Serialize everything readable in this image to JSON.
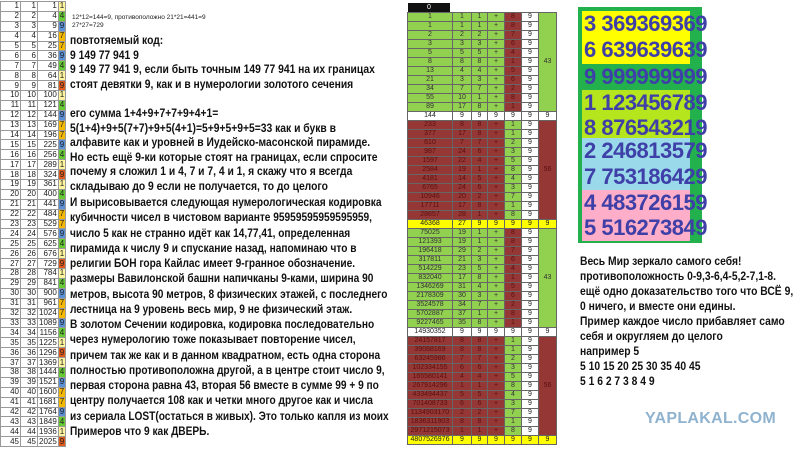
{
  "colors": {
    "root_1": "#fff59d",
    "root_4": "#66cc33",
    "root_7": "#f5b800",
    "root_9_mod3": "#5b8fd6",
    "root_9_mod9": "#e05a1a",
    "green": "#92d050",
    "dark_red": "#953735",
    "yellow": "#ffff00",
    "panel_green": "#22b14c",
    "number_blue": "#3f3fa8"
  },
  "squares_table": [
    [
      1,
      1,
      1,
      1
    ],
    [
      2,
      2,
      4,
      4
    ],
    [
      3,
      3,
      9,
      9
    ],
    [
      4,
      4,
      16,
      7
    ],
    [
      5,
      5,
      25,
      7
    ],
    [
      6,
      6,
      36,
      9
    ],
    [
      7,
      7,
      49,
      4
    ],
    [
      8,
      8,
      64,
      1
    ],
    [
      9,
      9,
      81,
      9
    ],
    [
      10,
      10,
      100,
      1
    ],
    [
      11,
      11,
      121,
      4
    ],
    [
      12,
      12,
      144,
      9
    ],
    [
      13,
      13,
      169,
      7
    ],
    [
      14,
      14,
      196,
      7
    ],
    [
      15,
      15,
      225,
      9
    ],
    [
      16,
      16,
      256,
      4
    ],
    [
      17,
      17,
      289,
      1
    ],
    [
      18,
      18,
      324,
      9
    ],
    [
      19,
      19,
      361,
      1
    ],
    [
      20,
      20,
      400,
      4
    ],
    [
      21,
      21,
      441,
      9
    ],
    [
      22,
      22,
      484,
      7
    ],
    [
      23,
      23,
      529,
      7
    ],
    [
      24,
      24,
      576,
      9
    ],
    [
      25,
      25,
      625,
      4
    ],
    [
      26,
      26,
      676,
      1
    ],
    [
      27,
      27,
      729,
      9
    ],
    [
      28,
      28,
      784,
      1
    ],
    [
      29,
      29,
      841,
      4
    ],
    [
      30,
      30,
      900,
      9
    ],
    [
      31,
      31,
      961,
      7
    ],
    [
      32,
      32,
      1024,
      7
    ],
    [
      33,
      33,
      1089,
      9
    ],
    [
      34,
      34,
      1156,
      4
    ],
    [
      35,
      35,
      1225,
      1
    ],
    [
      36,
      36,
      1296,
      9
    ],
    [
      37,
      37,
      1369,
      1
    ],
    [
      38,
      38,
      1444,
      4
    ],
    [
      39,
      39,
      1521,
      9
    ],
    [
      40,
      40,
      1600,
      7
    ],
    [
      41,
      41,
      1681,
      7
    ],
    [
      42,
      42,
      1764,
      9
    ],
    [
      43,
      43,
      1849,
      4
    ],
    [
      44,
      44,
      1936,
      1
    ],
    [
      45,
      45,
      2025,
      9
    ]
  ],
  "note": {
    "line1": "12*12=144=9, противоположно 21*21=441=9",
    "line2": "27*27=729"
  },
  "text_block1": [
    "повтотяемый код:",
    " 9 149 77 941 9",
    "9 149 77 941 9, если быть точным 149 77 941 на их границах",
    "стоят девятки 9, как и в нумерологии золотого сечения",
    "",
    "его сумма 1+4+9+7+7+9+4+1=",
    "5(1+4)+9+5(7+7)+9+5(4+1)=5+9+5+9+5=33 как и букв в",
    "алфавите как и уровней в Иудейско-масонской пирамиде.",
    "Но есть ещё 9-ки которые стоят на границах, если спросите",
    "почему я сложил 1 и 4, 7 и 7, 4 и 1, я скажу что я всегда",
    "складываю до 9 если не получается, то до целого"
  ],
  "text_block2": [
    "И вырисовывается следующая нумерологическая кодировка",
    "кубичности чисел в чистовом варианте 95959595959595959,",
    "число 5 как не странно идёт как 14,77,41, определенная",
    "пирамида к числу 9 и спускание назад, напоминаю что в",
    "религии БОН гора Кайлас имеет 9-гранное обозначение.",
    "размеры Вавилонской башни напичканы 9-ками, ширина 90",
    "метров, высота 90 метров, 8 физических этажей, с последнего",
    "лестница на 9 уровень весь мир, 9 не физический этаж.",
    "В золотом Сечении кодировка, кодировка последовательно",
    "через нумерологию тоже показывает повторение чисел,",
    "причем так же как и в данном квадратном, есть одна сторона",
    "полностью противоположна другой, а в центре стоит число 9,",
    "первая сторона равна 43, вторая 56 вместе в сумме 99 + 9 по",
    "центру получается 108 как и четки много другое как и числа",
    "из сериала LOST(остаться в живых). Это только капля из моих",
    "Примеров что 9 как ДВЕРЬ."
  ],
  "fib_table": {
    "header": "0",
    "sections": [
      {
        "theme": "green",
        "total": "43",
        "rows": [
          [
            "1",
            "1",
            "1",
            "+",
            "8",
            "9"
          ],
          [
            "1",
            "1",
            "1",
            "+",
            "8",
            "9"
          ],
          [
            "2",
            "2",
            "2",
            "+",
            "7",
            "9"
          ],
          [
            "3",
            "3",
            "3",
            "+",
            "6",
            "9"
          ],
          [
            "5",
            "5",
            "5",
            "+",
            "4",
            "9"
          ],
          [
            "8",
            "8",
            "8",
            "+",
            "1",
            "9"
          ],
          [
            "13",
            "4",
            "4",
            "+",
            "5",
            "9"
          ],
          [
            "21",
            "3",
            "3",
            "+",
            "6",
            "9"
          ],
          [
            "34",
            "7",
            "7",
            "+",
            "2",
            "9"
          ],
          [
            "55",
            "10",
            "1",
            "+",
            "8",
            "9"
          ],
          [
            "89",
            "17",
            "8",
            "+",
            "1",
            "9"
          ]
        ]
      },
      {
        "theme": "white",
        "sum": [
          "144",
          "9",
          "9",
          "9",
          "9",
          "9",
          "9"
        ]
      },
      {
        "theme": "red",
        "total": "56",
        "rows": [
          [
            "233",
            "8",
            "8",
            "+",
            "1",
            "9"
          ],
          [
            "377",
            "17",
            "8",
            "+",
            "1",
            "9"
          ],
          [
            "610",
            "7",
            "7",
            "+",
            "2",
            "9"
          ],
          [
            "987",
            "24",
            "6",
            "+",
            "3",
            "9"
          ],
          [
            "1597",
            "22",
            "4",
            "+",
            "5",
            "9"
          ],
          [
            "2584",
            "19",
            "1",
            "+",
            "8",
            "9"
          ],
          [
            "4181",
            "14",
            "5",
            "+",
            "4",
            "9"
          ],
          [
            "6765",
            "24",
            "6",
            "+",
            "3",
            "9"
          ],
          [
            "10946",
            "20",
            "2",
            "+",
            "7",
            "9"
          ],
          [
            "17711",
            "17",
            "8",
            "+",
            "1",
            "9"
          ],
          [
            "28657",
            "28",
            "1",
            "+",
            "8",
            "9"
          ]
        ]
      },
      {
        "theme": "yellow",
        "sum": [
          "46368",
          "27",
          "9",
          "9",
          "9",
          "9",
          "9"
        ]
      },
      {
        "theme": "green",
        "total": "43",
        "rows": [
          [
            "75025",
            "19",
            "1",
            "+",
            "8",
            "9"
          ],
          [
            "121393",
            "19",
            "1",
            "+",
            "8",
            "9"
          ],
          [
            "196418",
            "29",
            "2",
            "+",
            "7",
            "9"
          ],
          [
            "317811",
            "21",
            "3",
            "+",
            "6",
            "9"
          ],
          [
            "514229",
            "23",
            "5",
            "+",
            "4",
            "9"
          ],
          [
            "832040",
            "17",
            "8",
            "+",
            "1",
            "9"
          ],
          [
            "1346269",
            "31",
            "4",
            "+",
            "5",
            "9"
          ],
          [
            "2178309",
            "30",
            "3",
            "+",
            "6",
            "9"
          ],
          [
            "3524578",
            "34",
            "7",
            "+",
            "2",
            "9"
          ],
          [
            "5702887",
            "37",
            "1",
            "+",
            "8",
            "9"
          ],
          [
            "9227465",
            "35",
            "8",
            "+",
            "1",
            "9"
          ]
        ]
      },
      {
        "theme": "white",
        "sum": [
          "14930352",
          "9",
          "9",
          "9",
          "9",
          "9",
          "9"
        ]
      },
      {
        "theme": "red",
        "total": "56",
        "rows": [
          [
            "24157817",
            "8",
            "8",
            "+",
            "1",
            "9"
          ],
          [
            "39088169",
            "8",
            "8",
            "+",
            "1",
            "9"
          ],
          [
            "63245986",
            "7",
            "7",
            "+",
            "2",
            "9"
          ],
          [
            "102334155",
            "6",
            "6",
            "+",
            "3",
            "9"
          ],
          [
            "165580141",
            "4",
            "4",
            "+",
            "5",
            "9"
          ],
          [
            "267914296",
            "1",
            "1",
            "+",
            "8",
            "9"
          ],
          [
            "433494437",
            "5",
            "5",
            "+",
            "4",
            "9"
          ],
          [
            "701408733",
            "6",
            "6",
            "+",
            "3",
            "9"
          ],
          [
            "1134903170",
            "2",
            "2",
            "+",
            "7",
            "9"
          ],
          [
            "1836311903",
            "8",
            "8",
            "+",
            "1",
            "9"
          ],
          [
            "2971215073",
            "1",
            "1",
            "+",
            "8",
            "9"
          ]
        ]
      },
      {
        "theme": "yellow",
        "sum": [
          "4807526976",
          "9",
          "9",
          "9",
          "9",
          "9",
          "9"
        ]
      }
    ]
  },
  "number_panel": [
    {
      "text": "3 369369369",
      "bg": "#ffff00"
    },
    {
      "text": "6 639639639",
      "bg": "#ffff00"
    },
    {
      "text": "9 999999999",
      "bg": "#22b14c"
    },
    {
      "text": "1 123456789",
      "bg": "#b5e61d"
    },
    {
      "text": "8 876543219",
      "bg": "#b5e61d"
    },
    {
      "text": "2 246813579",
      "bg": "#99d9ea"
    },
    {
      "text": "7 753186429",
      "bg": "#99d9ea"
    },
    {
      "text": "4 483726159",
      "bg": "#ffaec9"
    },
    {
      "text": "5 516273849",
      "bg": "#ffaec9"
    }
  ],
  "right_text": [
    "Весь Мир зеркало самого себя!",
    "противоположность 0-9,3-6,4-5,2-7,1-8.",
    "ещё одно доказательство того что ВСЁ 9,",
    "0 ничего, и вместе они едины.",
    "Пример каждое число прибавляет само",
    "себя и округляем до целого",
    "например 5",
    "5 10 15 20 25 30 35 40 45",
    "5 1 6 2 7 3 8 4 9"
  ],
  "watermark": "YAPLAKAL.COM"
}
